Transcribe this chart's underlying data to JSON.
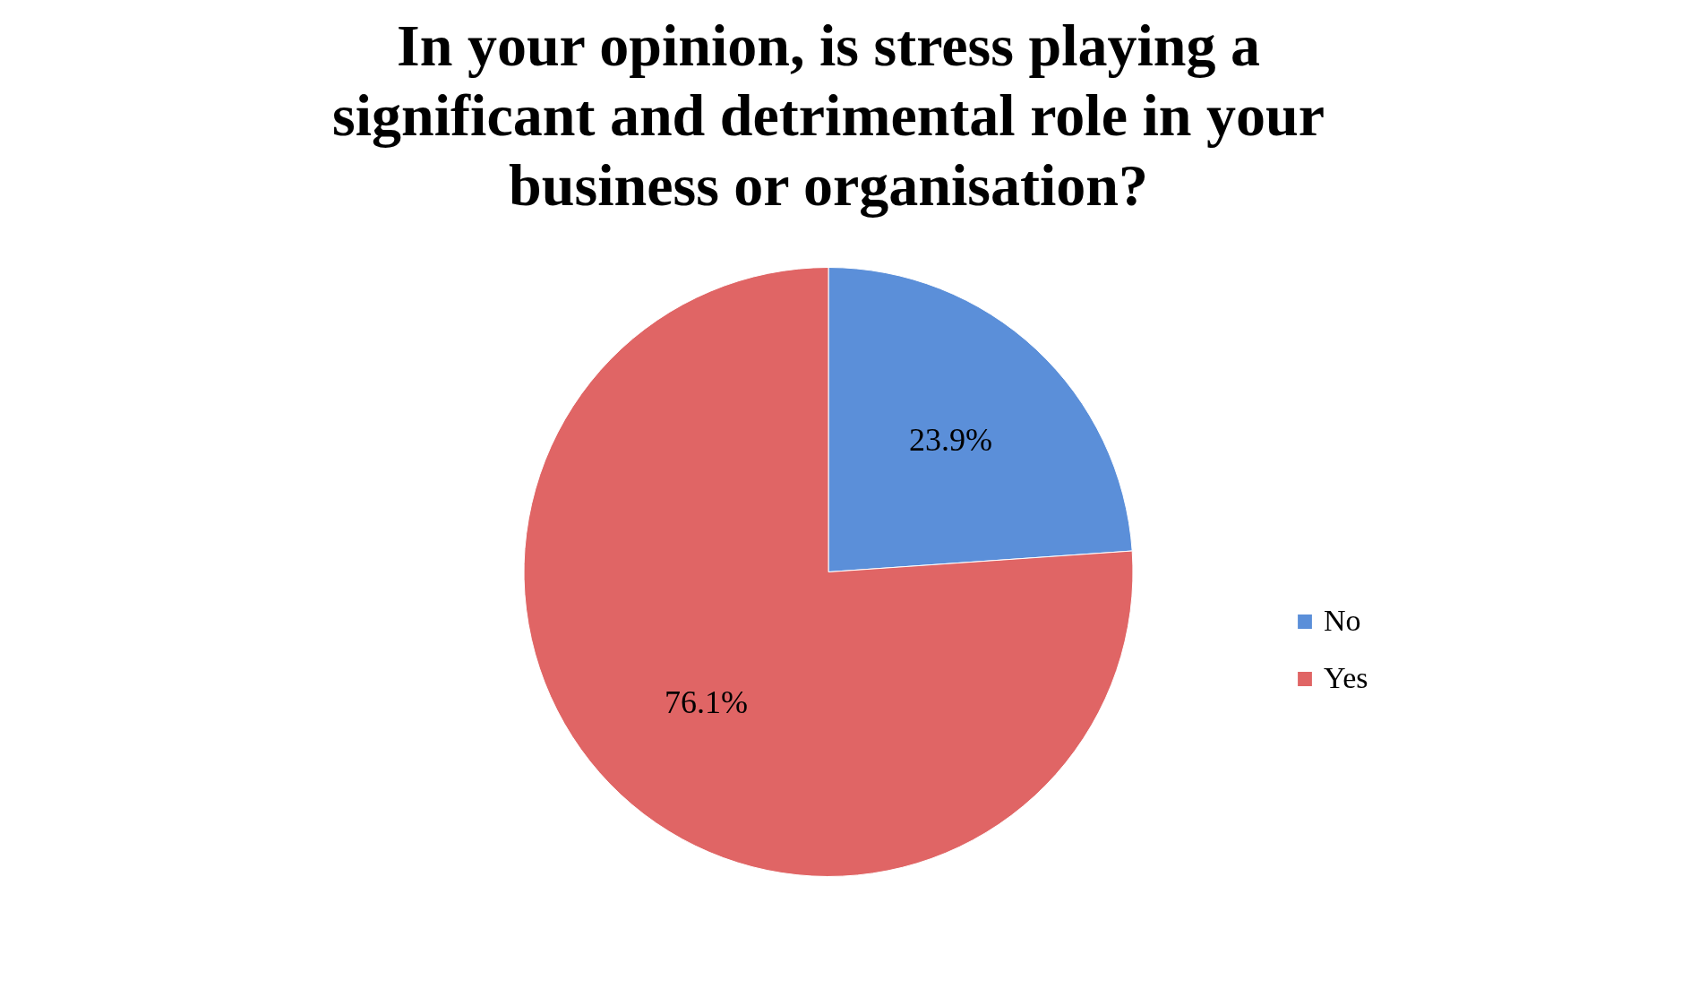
{
  "chart_data": {
    "type": "pie",
    "title": "In your opinion, is stress playing a significant and detrimental role in your business or organisation?",
    "categories": [
      "No",
      "Yes"
    ],
    "values": [
      23.9,
      76.1
    ],
    "colors": [
      "#5b8fd9",
      "#e06565"
    ],
    "value_labels": [
      "23.9%",
      "76.1%"
    ],
    "legend": "right"
  }
}
